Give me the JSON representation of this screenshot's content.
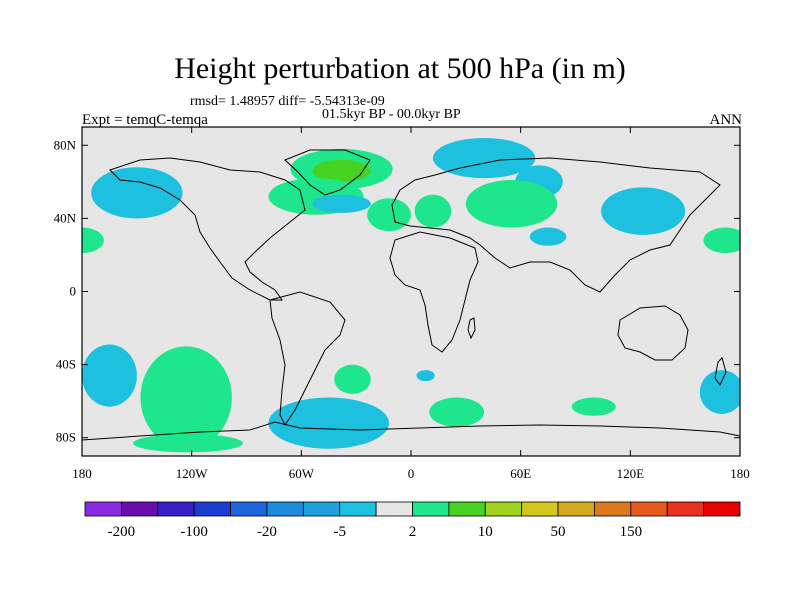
{
  "title": "Height perturbation at 500 hPa (in m)",
  "stats": "rmsd= 1.48957 diff= -5.54313e-09",
  "period": "01.5kyr BP - 00.0kyr BP",
  "experiment": "Expt = temqC-temqa",
  "season": "ANN",
  "map": {
    "projection": "cylindrical equidistant",
    "lon_range": [
      -180,
      180
    ],
    "lat_range": [
      -90,
      90
    ],
    "background_color": "#e6e6e6",
    "y_ticks": [
      {
        "lat": 80,
        "label": "80N"
      },
      {
        "lat": 40,
        "label": "40N"
      },
      {
        "lat": 0,
        "label": "0"
      },
      {
        "lat": -40,
        "label": "40S"
      },
      {
        "lat": -80,
        "label": "80S"
      }
    ],
    "x_ticks": [
      {
        "lon": -180,
        "label": "180"
      },
      {
        "lon": -120,
        "label": "120W"
      },
      {
        "lon": -60,
        "label": "60W"
      },
      {
        "lon": 0,
        "label": "0"
      },
      {
        "lon": 60,
        "label": "60E"
      },
      {
        "lon": 120,
        "label": "120E"
      },
      {
        "lon": 180,
        "label": "180"
      }
    ]
  },
  "colorbar": {
    "colors": [
      "#8a2be2",
      "#6a0dad",
      "#3c1ec8",
      "#1e3cd2",
      "#1e64dc",
      "#1e8cdc",
      "#1ea0dc",
      "#1ec0e0",
      "#e6e6e6",
      "#1ee68c",
      "#46d21e",
      "#a0d21e",
      "#d2c81e",
      "#d2aa1e",
      "#dc781e",
      "#e65a1e",
      "#e6321e",
      "#e60000"
    ],
    "labels": [
      {
        "after_box": 1,
        "text": "-200"
      },
      {
        "after_box": 3,
        "text": "-100"
      },
      {
        "after_box": 5,
        "text": "-20"
      },
      {
        "after_box": 7,
        "text": "-5"
      },
      {
        "after_box": 9,
        "text": "2"
      },
      {
        "after_box": 11,
        "text": "10"
      },
      {
        "after_box": 13,
        "text": "50"
      },
      {
        "after_box": 15,
        "text": "150"
      }
    ]
  },
  "anomaly_regions": [
    {
      "lon": 70,
      "lat": 60,
      "rlon": 13,
      "rlat": 9,
      "sign": "neg",
      "color": "#1ec0e0"
    },
    {
      "lon": -38,
      "lat": 67,
      "rlon": 28,
      "rlat": 11,
      "sign": "pos",
      "color": "#1ee68c"
    },
    {
      "lon": -38,
      "lat": 66,
      "rlon": 16,
      "rlat": 6,
      "sign": "pos",
      "color": "#46d21e"
    },
    {
      "lon": -150,
      "lat": 54,
      "rlon": 25,
      "rlat": 14,
      "sign": "neg",
      "color": "#1ec0e0"
    },
    {
      "lon": -52,
      "lat": 52,
      "rlon": 26,
      "rlat": 10,
      "sign": "pos",
      "color": "#1ee68c"
    },
    {
      "lon": -38,
      "lat": 48,
      "rlon": 16,
      "rlat": 5,
      "sign": "neg",
      "color": "#1ec0e0"
    },
    {
      "lon": -12,
      "lat": 42,
      "rlon": 12,
      "rlat": 9,
      "sign": "pos",
      "color": "#1ee68c"
    },
    {
      "lon": 12,
      "lat": 44,
      "rlon": 10,
      "rlat": 9,
      "sign": "pos",
      "color": "#1ee68c"
    },
    {
      "lon": 55,
      "lat": 48,
      "rlon": 25,
      "rlat": 13,
      "sign": "pos",
      "color": "#1ee68c"
    },
    {
      "lon": 40,
      "lat": 73,
      "rlon": 28,
      "rlat": 11,
      "sign": "neg",
      "color": "#1ec0e0"
    },
    {
      "lon": 127,
      "lat": 44,
      "rlon": 23,
      "rlat": 13,
      "sign": "neg",
      "color": "#1ec0e0"
    },
    {
      "lon": 75,
      "lat": 30,
      "rlon": 10,
      "rlat": 5,
      "sign": "neg",
      "color": "#1ec0e0"
    },
    {
      "lon": 172,
      "lat": 28,
      "rlon": 12,
      "rlat": 7,
      "sign": "pos",
      "color": "#1ee68c"
    },
    {
      "lon": -180,
      "lat": 28,
      "rlon": 12,
      "rlat": 7,
      "sign": "pos",
      "color": "#1ee68c"
    },
    {
      "lon": -165,
      "lat": -46,
      "rlon": 15,
      "rlat": 17,
      "sign": "neg",
      "color": "#1ec0e0"
    },
    {
      "lon": -123,
      "lat": -58,
      "rlon": 25,
      "rlat": 28,
      "sign": "pos",
      "color": "#1ee68c"
    },
    {
      "lon": -122,
      "lat": -83,
      "rlon": 30,
      "rlat": 5,
      "sign": "pos",
      "color": "#1ee68c"
    },
    {
      "lon": -32,
      "lat": -48,
      "rlon": 10,
      "rlat": 8,
      "sign": "pos",
      "color": "#1ee68c"
    },
    {
      "lon": 8,
      "lat": -46,
      "rlon": 5,
      "rlat": 3,
      "sign": "neg",
      "color": "#1ec0e0"
    },
    {
      "lon": -45,
      "lat": -72,
      "rlon": 33,
      "rlat": 14,
      "sign": "neg",
      "color": "#1ec0e0"
    },
    {
      "lon": 25,
      "lat": -66,
      "rlon": 15,
      "rlat": 8,
      "sign": "pos",
      "color": "#1ee68c"
    },
    {
      "lon": 100,
      "lat": -63,
      "rlon": 12,
      "rlat": 5,
      "sign": "pos",
      "color": "#1ee68c"
    },
    {
      "lon": 170,
      "lat": -55,
      "rlon": 12,
      "rlat": 12,
      "sign": "neg",
      "color": "#1ec0e0"
    }
  ]
}
